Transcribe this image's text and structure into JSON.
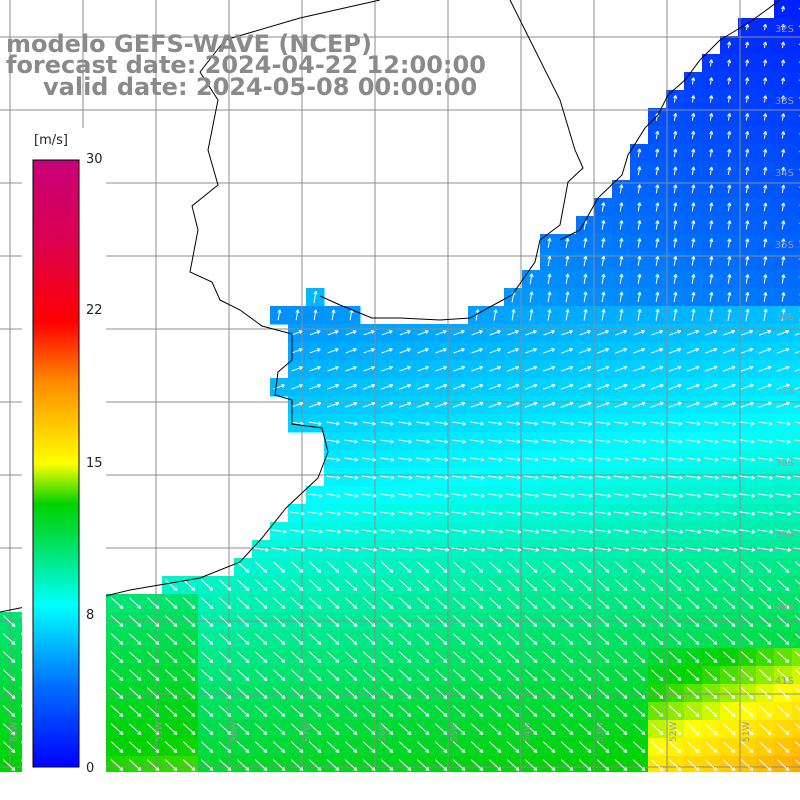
{
  "title": {
    "model": "modelo GEFS-WAVE (NCEP)",
    "forecast": "forecast date: 2024-04-22 12:00:00",
    "valid": "valid date: 2024-05-08 00:00:00"
  },
  "colorbar": {
    "unit": "[m/s]",
    "ticks": [
      "30",
      "22",
      "15",
      "8",
      "0"
    ],
    "tick_values": [
      30,
      22,
      15,
      8,
      0
    ]
  },
  "lat_labels": [
    "32S",
    "33S",
    "34S",
    "35S",
    "36S",
    "37S",
    "38S",
    "39S",
    "40S",
    "41S"
  ],
  "lon_labels": [
    "60W",
    "59W",
    "58W",
    "57W",
    "56W",
    "55W",
    "54W",
    "53W",
    "52W",
    "51W"
  ],
  "colors": {
    "grid": "#8c8c8c",
    "land": "#ffffff",
    "coast": "#000000",
    "arrow": "#ffffff"
  },
  "chart_data": {
    "type": "heatmap",
    "variable": "wind speed with direction arrows",
    "unit": "m/s",
    "range": [
      0,
      30
    ],
    "region": {
      "lon": [
        -61,
        -50
      ],
      "lat": [
        -42,
        -31
      ]
    }
  }
}
